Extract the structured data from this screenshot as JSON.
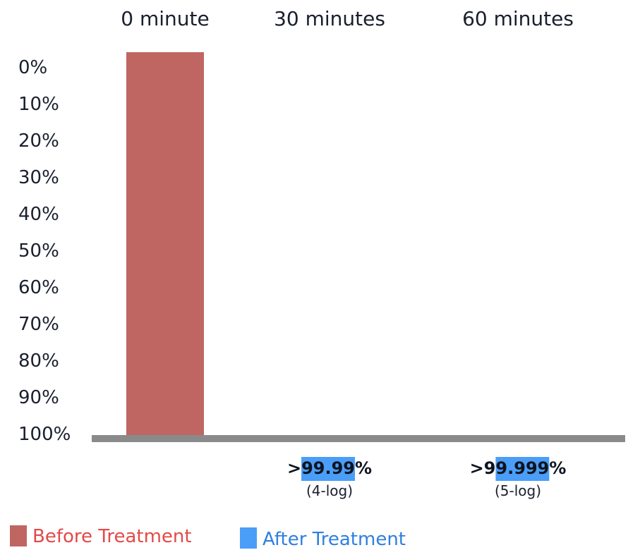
{
  "chart_data": {
    "type": "bar",
    "categories": [
      "0 minute",
      "30 minutes",
      "60 minutes"
    ],
    "y_ticks": [
      "0%",
      "10%",
      "20%",
      "30%",
      "40%",
      "50%",
      "60%",
      "70%",
      "80%",
      "90%",
      "100%"
    ],
    "ylim": [
      0,
      100
    ],
    "y_inverted": true,
    "series": [
      {
        "name": "Before Treatment",
        "color": "#bf6663",
        "values": [
          100,
          null,
          null
        ]
      },
      {
        "name": "After Treatment",
        "color": "#4a9ef7",
        "values": [
          null,
          0,
          0
        ]
      }
    ],
    "annotations": [
      {
        "category": "30 minutes",
        "prefix": ">",
        "highlight": "99.99",
        "suffix": "%",
        "note": "(4-log)"
      },
      {
        "category": "60 minutes",
        "prefix": ">9",
        "highlight": "9.999",
        "suffix": "%",
        "note": "(5-log)"
      }
    ],
    "legend": [
      {
        "label": "Before Treatment",
        "color": "#bf6663",
        "text_color": "#e24a48"
      },
      {
        "label": "After Treatment",
        "color": "#4a9ef7",
        "text_color": "#2f7fe0"
      }
    ],
    "legend_position": "bottom-left",
    "baseline_color": "#8a8a8a",
    "highlight_color": "#4a9ef7",
    "grid": false
  }
}
